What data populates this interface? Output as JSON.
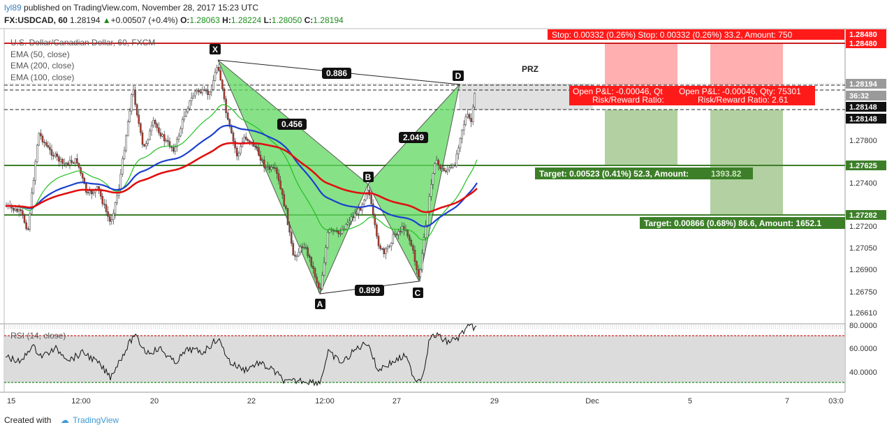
{
  "header": {
    "author": "lyl89",
    "published": "published on TradingView.com, November 28, 2017 15:23 UTC",
    "symbol": "FX:USDCAD, 60",
    "price": "1.28194",
    "change": "+0.00507 (+0.4%)",
    "o_label": "O:",
    "o_value": "1.28063",
    "h_label": "H:",
    "h_value": "1.28224",
    "l_label": "L:",
    "l_value": "1.28050",
    "c_label": "C:",
    "c_value": "1.28194"
  },
  "legend": {
    "instrument": "U.S. Dollar/Canadian Dollar, 60, FXCM",
    "ema50": "EMA (50, close)",
    "ema200": "EMA (200, close)",
    "ema100": "EMA (100, close)",
    "rsi": "RSI (14, close)"
  },
  "colors": {
    "ema50": "#22c022",
    "ema100": "#1a3fd0",
    "ema200": "#e01010",
    "pattern_fill": "#5fd85f",
    "stop_red": "#ff1a1a",
    "target_green": "#3d7f29",
    "up_candle": "#ffffff",
    "down_candle": "#c0392b"
  },
  "annotations": {
    "stop_label": "Stop: 0.00332 (0.26%)  Stop: 0.00332 (0.26%) 33.2, Amount: 750",
    "prz": "PRZ",
    "pnl_left_1": "Open P&L: -0.00046, Qt",
    "pnl_left_2": "Risk/Reward Ratio:",
    "pnl_right_1": "Open P&L: -0.00046, Qty: 75301",
    "pnl_right_2": "Risk/Reward Ratio: 2.61",
    "target1_prefix": "Target: 0.00523 (0.41%) 52.3, Amount:",
    "target1_amount": "1393.82",
    "target2": "Target: 0.00866 (0.68%) 86.6, Amount: 1652.1",
    "ratio_xd": "0.886",
    "ratio_xb": "0.456",
    "ratio_bd": "2.049",
    "ratio_ac": "0.899",
    "pt_x": "X",
    "pt_a": "A",
    "pt_b": "B",
    "pt_c": "C",
    "pt_d": "D"
  },
  "price_axis": {
    "ticks": [
      "1.27800",
      "1.27400",
      "1.27200",
      "1.27050",
      "1.26900",
      "1.26750",
      "1.26610"
    ],
    "markers": [
      {
        "label": "1.28480",
        "kind": "red"
      },
      {
        "label": "1.28480",
        "kind": "red"
      },
      {
        "label": "1.28194",
        "kind": "grey"
      },
      {
        "label": "36:32",
        "kind": "grey"
      },
      {
        "label": "1.28148",
        "kind": "black"
      },
      {
        "label": "1.28148",
        "kind": "black"
      },
      {
        "label": "1.27625",
        "kind": "green"
      },
      {
        "label": "1.27282",
        "kind": "green"
      }
    ]
  },
  "rsi_axis": {
    "ticks": [
      "80.0000",
      "60.0000",
      "40.0000"
    ]
  },
  "time_axis": {
    "ticks": [
      "15",
      "12:00",
      "20",
      "22",
      "12:00",
      "27",
      "29",
      "Dec",
      "5",
      "7",
      "03:0"
    ]
  },
  "footer": {
    "created_with": "Created with",
    "brand": "TradingView"
  },
  "chart_data": {
    "type": "candlestick",
    "title": "U.S. Dollar/Canadian Dollar, 60, FXCM",
    "series": [
      {
        "name": "EMA (50, close)",
        "color": "#22c022"
      },
      {
        "name": "EMA (200, close)",
        "color": "#e01010"
      },
      {
        "name": "EMA (100, close)",
        "color": "#1a3fd0"
      }
    ],
    "pattern": {
      "points": [
        {
          "label": "X",
          "price": 1.2846
        },
        {
          "label": "A",
          "price": 1.2673
        },
        {
          "label": "B",
          "price": 1.2748
        },
        {
          "label": "C",
          "price": 1.2682
        },
        {
          "label": "D",
          "price": 1.2818
        }
      ],
      "ratios": {
        "XD": 0.886,
        "XB": 0.456,
        "BD": 2.049,
        "AC": 0.899
      }
    },
    "levels": {
      "stop": 1.2848,
      "entry": 1.28148,
      "last": 1.28194,
      "target1": 1.27625,
      "target2": 1.27282
    },
    "ylim": [
      1.2655,
      1.286
    ],
    "rsi": {
      "name": "RSI (14, close)",
      "overbought": 70,
      "oversold": 30,
      "ylim": [
        20,
        85
      ]
    }
  }
}
